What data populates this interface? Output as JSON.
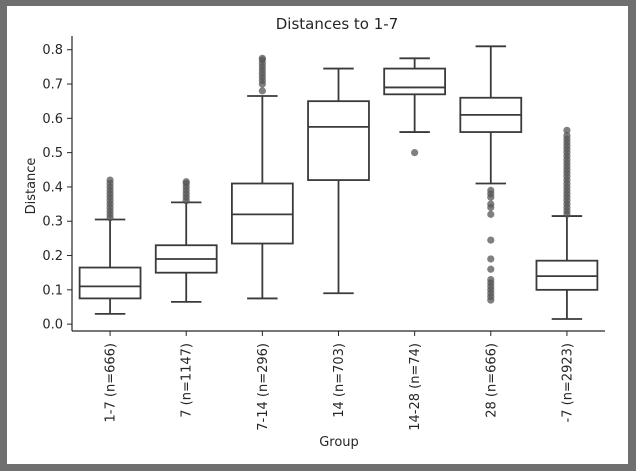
{
  "chart_data": {
    "type": "box",
    "title": "Distances to 1-7",
    "xlabel": "Group",
    "ylabel": "Distance",
    "ylim": [
      -0.02,
      0.84
    ],
    "yticks": [
      0.0,
      0.1,
      0.2,
      0.3,
      0.4,
      0.5,
      0.6,
      0.7,
      0.8
    ],
    "ytick_labels": [
      "0.0",
      "0.1",
      "0.2",
      "0.3",
      "0.4",
      "0.5",
      "0.6",
      "0.7",
      "0.8"
    ],
    "grid": false,
    "categories": [
      "1-7 (n=666)",
      "7 (n=1147)",
      "7-14 (n=296)",
      "14 (n=703)",
      "14-28 (n=74)",
      "28 (n=666)",
      "-7 (n=2923)"
    ],
    "boxes": [
      {
        "whisker_low": 0.03,
        "q1": 0.075,
        "median": 0.11,
        "q3": 0.165,
        "whisker_high": 0.305,
        "outliers": [
          0.31,
          0.32,
          0.33,
          0.34,
          0.35,
          0.36,
          0.37,
          0.38,
          0.39,
          0.4,
          0.41,
          0.42
        ]
      },
      {
        "whisker_low": 0.065,
        "q1": 0.15,
        "median": 0.19,
        "q3": 0.23,
        "whisker_high": 0.355,
        "outliers": [
          0.36,
          0.37,
          0.38,
          0.39,
          0.4,
          0.41,
          0.415
        ]
      },
      {
        "whisker_low": 0.075,
        "q1": 0.235,
        "median": 0.32,
        "q3": 0.41,
        "whisker_high": 0.665,
        "outliers": [
          0.68,
          0.7,
          0.71,
          0.72,
          0.73,
          0.74,
          0.75,
          0.76,
          0.77,
          0.775
        ]
      },
      {
        "whisker_low": 0.09,
        "q1": 0.42,
        "median": 0.575,
        "q3": 0.65,
        "whisker_high": 0.745,
        "outliers": []
      },
      {
        "whisker_low": 0.56,
        "q1": 0.67,
        "median": 0.69,
        "q3": 0.745,
        "whisker_high": 0.775,
        "outliers": [
          0.5
        ]
      },
      {
        "whisker_low": 0.41,
        "q1": 0.56,
        "median": 0.61,
        "q3": 0.66,
        "whisker_high": 0.81,
        "outliers": [
          0.39,
          0.38,
          0.37,
          0.35,
          0.34,
          0.32,
          0.245,
          0.19,
          0.16,
          0.13,
          0.12,
          0.11,
          0.1,
          0.09,
          0.08,
          0.07
        ]
      },
      {
        "whisker_low": 0.015,
        "q1": 0.1,
        "median": 0.14,
        "q3": 0.185,
        "whisker_high": 0.315,
        "outliers": [
          0.32,
          0.33,
          0.34,
          0.35,
          0.36,
          0.37,
          0.38,
          0.39,
          0.4,
          0.41,
          0.42,
          0.43,
          0.44,
          0.45,
          0.46,
          0.47,
          0.48,
          0.49,
          0.5,
          0.51,
          0.52,
          0.53,
          0.54,
          0.55,
          0.565
        ]
      }
    ],
    "box_color": "#ffffff",
    "line_color": "#3a3a3a",
    "outlier_color": "#555555"
  },
  "style": {
    "background": "#6f6f6f",
    "figure_background": "#ffffff",
    "axis_color": "#262626"
  }
}
